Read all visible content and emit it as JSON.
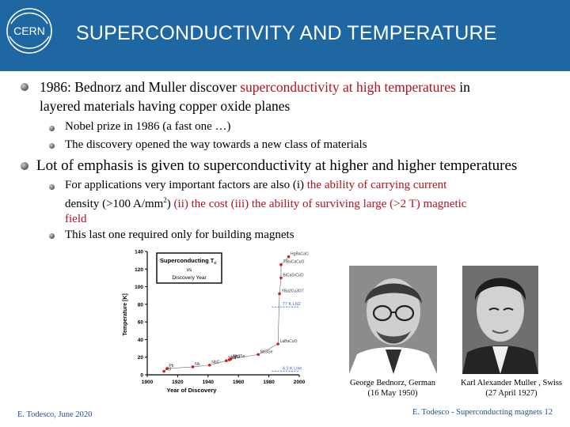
{
  "header": {
    "logo_text": "CERN",
    "title": "SUPERCONDUCTIVITY AND TEMPERATURE"
  },
  "bullets": {
    "b1_prefix": "1986: Bednorz and Muller discover ",
    "b1_highlight": "superconductivity at high temperatures",
    "b1_suffix": " in",
    "b1_line2": "layered materials having copper oxide planes",
    "b1_sub1": "Nobel prize in 1986 (a fast one …)",
    "b1_sub2": "The discovery opened the way towards a new class of materials",
    "b2": "Lot of emphasis is given to superconductivity at higher and higher temperatures",
    "b2_sub1_prefix": "For applications very important factors are also (i) ",
    "b2_sub1_hl1": "the ability of carrying current",
    "b2_sub1_hl2a": "density (>100 A/mm",
    "b2_sub1_sup": "2",
    "b2_sub1_hl2b": ")",
    "b2_sub1_mid": "  (ii) the cost (iii) the ability of surviving large (>2 T) magnetic",
    "b2_sub1_line3": "field",
    "b2_sub2": "This last one required only for building magnets"
  },
  "chart_data": {
    "type": "scatter",
    "title": "Superconducting Tc vs Discovery Year",
    "title_line1": "Superconducting T",
    "title_sub": "c",
    "title_line2": "vs",
    "title_line3": "Discovery Year",
    "xlabel": "Year of Discovery",
    "ylabel": "Temperature [K]",
    "xlim": [
      1900,
      2000
    ],
    "ylim": [
      0,
      140
    ],
    "xticks": [
      1900,
      1920,
      1940,
      1960,
      1980,
      2000
    ],
    "yticks": [
      0,
      20,
      40,
      60,
      80,
      100,
      120,
      140
    ],
    "points": [
      {
        "label": "Hg",
        "x": 1911,
        "y": 4
      },
      {
        "label": "Pb",
        "x": 1913,
        "y": 7
      },
      {
        "label": "Nb",
        "x": 1930,
        "y": 9
      },
      {
        "label": "NbC",
        "x": 1941,
        "y": 11
      },
      {
        "label": "NbN",
        "x": 1952,
        "y": 16
      },
      {
        "label": "V3Si",
        "x": 1954,
        "y": 17
      },
      {
        "label": "Nb3Sn",
        "x": 1955,
        "y": 18
      },
      {
        "label": "Nb3Ge",
        "x": 1973,
        "y": 23
      },
      {
        "label": "LaBaCuO",
        "x": 1986,
        "y": 35
      },
      {
        "label": "YBa2Cu3O7",
        "x": 1987,
        "y": 92
      },
      {
        "label": "BiCaSrCuO",
        "x": 1988,
        "y": 110
      },
      {
        "label": "TlBaCaCuO",
        "x": 1988,
        "y": 125
      },
      {
        "label": "HgBaCaCuO",
        "x": 1993,
        "y": 134
      }
    ],
    "reference_lines": [
      {
        "label": "77 K LN2",
        "y": 77
      },
      {
        "label": "4.2 K LHe",
        "y": 4.2
      }
    ]
  },
  "captions": {
    "left_line1": "George Bednorz, German",
    "left_line2": "(16 May 1950)",
    "right_line1": "Karl Alexander Muller , Swiss",
    "right_line2": "(27 April 1927)"
  },
  "footer": {
    "left": "E. Todesco, June 2020",
    "right": "E. Todesco - Superconducting magnets 12"
  },
  "colors": {
    "header_bg": "#1f67a3",
    "highlight_red": "#b3121b",
    "footer_blue": "#1f4e8c"
  }
}
